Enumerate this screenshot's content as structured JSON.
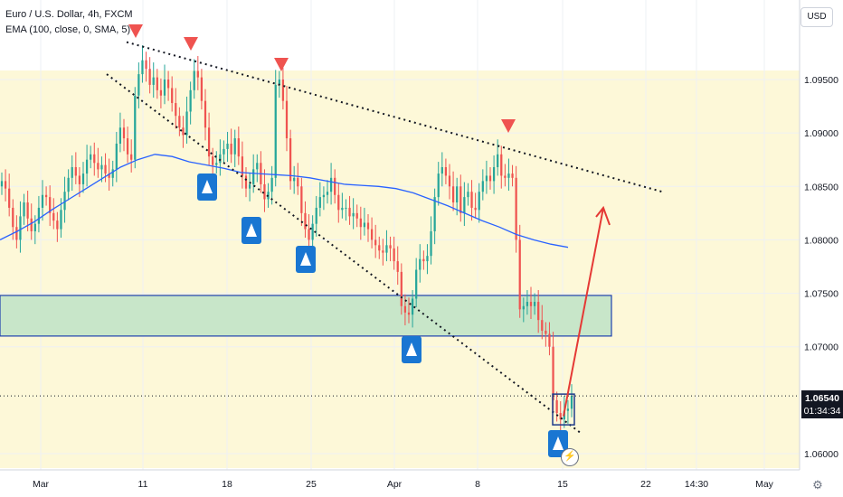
{
  "header": {
    "symbol_title": "Euro / U.S. Dollar, 4h, FXCM",
    "indicator": "EMA (100, close, 0, SMA, 5)",
    "currency": "USD"
  },
  "price_tag": {
    "last_price": "1.06540",
    "countdown": "01:34:34"
  },
  "icons": {
    "flash": "lightning-icon"
  },
  "colors": {
    "up": "#26a69a",
    "down": "#ef5350",
    "ema": "#2962ff",
    "zone": "#c8e6c9",
    "zone_border": "#1e40af",
    "arrow_up_marker": "#1976d2",
    "arrow_down_marker": "#ef5350",
    "projection": "#e53935",
    "bg_band": "#fdf8d8"
  },
  "chart_data": {
    "type": "candlestick",
    "y_axis_ticks": [
      "1.09500",
      "1.09000",
      "1.08500",
      "1.08000",
      "1.07500",
      "1.07000",
      "1.06000"
    ],
    "x_axis_ticks": [
      "Mar",
      "11",
      "18",
      "25",
      "Apr",
      "8",
      "15",
      "22",
      "14:30",
      "May"
    ],
    "ylim": [
      1.0595,
      1.1005
    ],
    "last_price": 1.0654,
    "support_zone": {
      "from": 1.071,
      "to": 1.0748
    },
    "candles_close": [
      1.0855,
      1.0848,
      1.083,
      1.0812,
      1.08,
      1.0822,
      1.0835,
      1.082,
      1.0808,
      1.0815,
      1.083,
      1.0842,
      1.084,
      1.0825,
      1.0818,
      1.081,
      1.0828,
      1.0845,
      1.0858,
      1.0868,
      1.086,
      1.0852,
      1.0862,
      1.0875,
      1.088,
      1.0872,
      1.0866,
      1.087,
      1.0862,
      1.0858,
      1.0866,
      1.089,
      1.0905,
      1.0895,
      1.088,
      1.0875,
      1.0935,
      1.0955,
      1.0968,
      1.096,
      1.0945,
      1.0952,
      1.094,
      1.0935,
      1.095,
      1.0942,
      1.0928,
      1.0916,
      1.0905,
      1.0898,
      1.092,
      1.094,
      1.0958,
      1.0952,
      1.093,
      1.0905,
      1.0878,
      1.087,
      1.0872,
      1.088,
      1.0885,
      1.089,
      1.088,
      1.0895,
      1.0878,
      1.086,
      1.0848,
      1.0852,
      1.0866,
      1.0872,
      1.0852,
      1.0838,
      1.0845,
      1.0858,
      1.0945,
      1.095,
      1.093,
      1.0895,
      1.0855,
      1.0858,
      1.085,
      1.0825,
      1.081,
      1.08,
      1.0815,
      1.083,
      1.084,
      1.0842,
      1.0845,
      1.0858,
      1.0842,
      1.0828,
      1.083,
      1.083,
      1.0822,
      1.0825,
      1.082,
      1.0812,
      1.0816,
      1.081,
      1.08,
      1.0795,
      1.079,
      1.0788,
      1.0795,
      1.0792,
      1.078,
      1.077,
      1.0738,
      1.0732,
      1.073,
      1.0745,
      1.0772,
      1.0782,
      1.078,
      1.0785,
      1.0808,
      1.084,
      1.0862,
      1.0868,
      1.086,
      1.085,
      1.0835,
      1.085,
      1.0825,
      1.084,
      1.0845,
      1.083,
      1.0828,
      1.0845,
      1.0855,
      1.086,
      1.0855,
      1.0868,
      1.088,
      1.086,
      1.0858,
      1.0862,
      1.0858,
      1.08,
      1.0735,
      1.0738,
      1.0742,
      1.0738,
      1.0742,
      1.0725,
      1.0715,
      1.0712,
      1.07,
      1.065,
      1.0638,
      1.0632,
      1.064,
      1.0642,
      1.0654
    ],
    "ema_100": [
      1.08,
      1.0808,
      1.0817,
      1.0828,
      1.0838,
      1.0848,
      1.0858,
      1.0868,
      1.0875,
      1.088,
      1.0878,
      1.0873,
      1.087,
      1.0867,
      1.0863,
      1.0862,
      1.0861,
      1.086,
      1.0858,
      1.0855,
      1.0852,
      1.0851,
      1.085,
      1.0848,
      1.0844,
      1.0838,
      1.0832,
      1.0825,
      1.0818,
      1.0812,
      1.0805,
      1.08,
      1.0796,
      1.0793
    ],
    "resistance_trendline": {
      "from": [
        "Mar 10",
        1.0985
      ],
      "to": [
        "Apr 20",
        1.0845
      ]
    },
    "support_trendline": {
      "from": [
        "Mar 6",
        1.0955
      ],
      "to": [
        "Apr 15",
        1.0618
      ]
    },
    "projection": {
      "from": 1.0635,
      "to": 1.083
    }
  }
}
